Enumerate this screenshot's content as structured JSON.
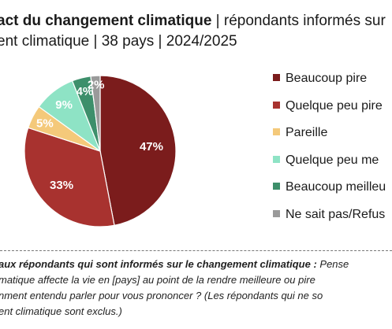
{
  "header": {
    "title_bold": "act du changement climatique",
    "title_rest": " | répondants informés sur",
    "subtitle": "ent climatique | 38 pays | 2024/2025"
  },
  "chart_data": {
    "type": "pie",
    "title": "act du changement climatique | répondants informés sur ent climatique | 38 pays | 2024/2025",
    "categories": [
      "Beaucoup pire",
      "Quelque peu pire",
      "Pareille",
      "Quelque peu me",
      "Beaucoup meilleu",
      "Ne sait pas/Refus"
    ],
    "values": [
      47,
      33,
      5,
      9,
      4,
      2
    ],
    "labels": [
      "47%",
      "33%",
      "5%",
      "9%",
      "4%",
      "2%"
    ],
    "colors": [
      "#7B1C1C",
      "#A8322F",
      "#F4C97A",
      "#8EE3C5",
      "#3D8F6B",
      "#9A9A9A"
    ],
    "legend_position": "right"
  },
  "note": {
    "line1_bold": "aux répondants qui sont informés sur le changement climatique :",
    "line1_rest": " Pense",
    "line2": "matique affecte la vie en [pays] au point de la rendre meilleure ou pire",
    "line3": "nment entendu parler pour vous prononcer ? (Les répondants qui ne so",
    "line4": "ent climatique sont exclus.)"
  }
}
